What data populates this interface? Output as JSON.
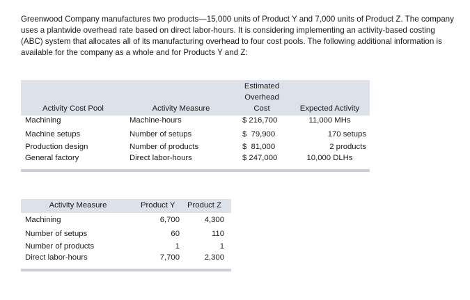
{
  "intro": "Greenwood Company manufactures two products—15,000 units of Product Y and 7,000 units of Product Z. The company uses a plantwide overhead rate based on direct labor-hours. It is considering implementing an activity-based costing (ABC) system that allocates all of its manufacturing overhead to four cost pools. The following additional information is available for the company as a whole and for Products Y and Z:",
  "table1": {
    "headers": {
      "pool": "Activity Cost Pool",
      "measure": "Activity Measure",
      "cost_line1": "Estimated",
      "cost_line2": "Overhead",
      "cost_line3": "Cost",
      "activity": "Expected Activity"
    },
    "rows": [
      {
        "pool": "Machining",
        "measure": "Machine-hours",
        "cost": "$ 216,700",
        "activity": "11,000 MHs"
      },
      {
        "pool": "Machine setups",
        "measure": "Number of setups",
        "cost": "$  79,900",
        "activity": "170 setups"
      },
      {
        "pool": "Production design",
        "measure": "Number of products",
        "cost": "$  81,000",
        "activity": "2 products"
      },
      {
        "pool": "General factory",
        "measure": "Direct labor-hours",
        "cost": "$ 247,000",
        "activity": "10,000 DLHs"
      }
    ]
  },
  "table2": {
    "headers": {
      "measure": "Activity Measure",
      "y": "Product Y",
      "z": "Product Z"
    },
    "rows": [
      {
        "measure": "Machining",
        "y": "6,700",
        "z": "4,300"
      },
      {
        "measure": "Number of setups",
        "y": "60",
        "z": "110"
      },
      {
        "measure": "Number of products",
        "y": "1",
        "z": "1"
      },
      {
        "measure": "Direct labor-hours",
        "y": "7,700",
        "z": "2,300"
      }
    ]
  }
}
